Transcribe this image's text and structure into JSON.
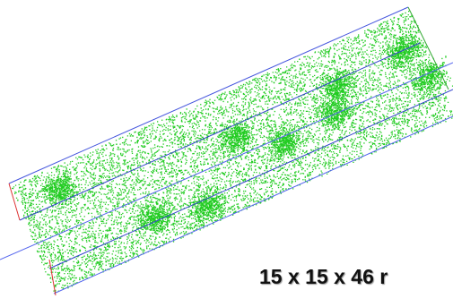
{
  "caption": "15 x 15 x 46 r"
}
